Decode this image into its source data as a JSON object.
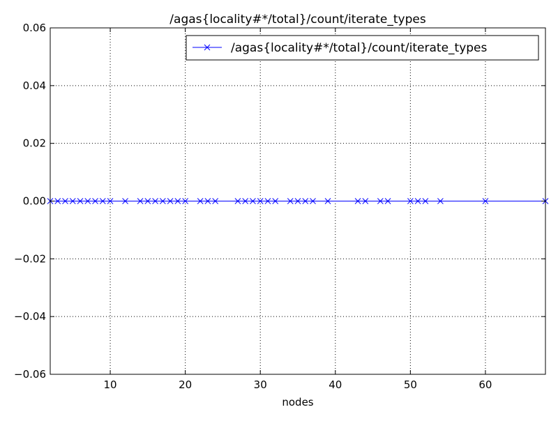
{
  "chart_data": {
    "type": "line",
    "title": "/agas{locality#*/total}/count/iterate_types",
    "xlabel": "nodes",
    "ylabel": "",
    "xlim": [
      2,
      68
    ],
    "ylim": [
      -0.06,
      0.06
    ],
    "x_ticks": [
      10,
      20,
      30,
      40,
      50,
      60
    ],
    "x_tick_labels": [
      "10",
      "20",
      "30",
      "40",
      "50",
      "60"
    ],
    "y_ticks": [
      -0.06,
      -0.04,
      -0.02,
      0.0,
      0.02,
      0.04,
      0.06
    ],
    "y_tick_labels": [
      "−0.06",
      "−0.04",
      "−0.02",
      "0.00",
      "0.02",
      "0.04",
      "0.06"
    ],
    "grid": true,
    "legend_position": "top-right",
    "series": [
      {
        "name": "/agas{locality#*/total}/count/iterate_types",
        "color": "#0000ff",
        "marker": "x",
        "x": [
          2,
          3,
          4,
          5,
          6,
          7,
          8,
          9,
          10,
          12,
          14,
          15,
          16,
          17,
          18,
          19,
          20,
          22,
          23,
          24,
          27,
          28,
          29,
          30,
          31,
          32,
          34,
          35,
          36,
          37,
          39,
          43,
          44,
          46,
          47,
          50,
          51,
          52,
          54,
          60,
          68
        ],
        "y": [
          0,
          0,
          0,
          0,
          0,
          0,
          0,
          0,
          0,
          0,
          0,
          0,
          0,
          0,
          0,
          0,
          0,
          0,
          0,
          0,
          0,
          0,
          0,
          0,
          0,
          0,
          0,
          0,
          0,
          0,
          0,
          0,
          0,
          0,
          0,
          0,
          0,
          0,
          0,
          0,
          0
        ]
      }
    ]
  }
}
